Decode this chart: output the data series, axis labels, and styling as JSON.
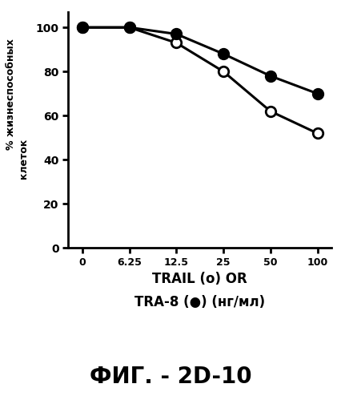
{
  "x_positions": [
    0,
    1,
    2,
    3,
    4,
    5
  ],
  "x_tick_labels": [
    "0",
    "6.25",
    "12.5",
    "25",
    "50",
    "100"
  ],
  "trail_open": [
    100,
    100,
    93,
    80,
    62,
    52
  ],
  "tra8_filled": [
    100,
    100,
    97,
    88,
    78,
    70
  ],
  "ylim": [
    0,
    107
  ],
  "yticks": [
    0,
    20,
    40,
    60,
    80,
    100
  ],
  "xlabel_line1": "TRAIL (o) OR",
  "xlabel_line2": "TRA-8 (●) (нг/мл)",
  "ylabel_line1": "% жизнеспособных",
  "ylabel_line2": "клеток",
  "figure_label": "ФИГ. - 2D-10",
  "bg_color": "#ffffff",
  "line_color": "#000000",
  "linewidth": 2.2,
  "markersize": 9,
  "markeredgewidth": 2.0
}
